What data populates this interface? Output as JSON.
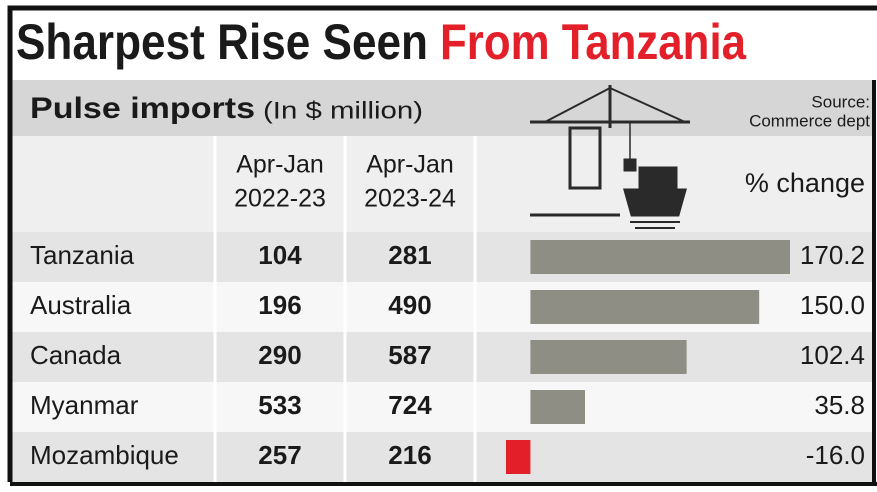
{
  "chart_data": {
    "type": "bar",
    "title": "Sharpest Rise Seen",
    "title_highlight": "From Tanzania",
    "subtitle": "Pulse imports",
    "unit_note": "(In $ million)",
    "source": [
      "Source:",
      "Commerce dept"
    ],
    "columns": [
      {
        "header": [
          "Apr-Jan",
          "2022-23"
        ],
        "values": [
          104,
          196,
          290,
          533,
          257
        ]
      },
      {
        "header": [
          "Apr-Jan",
          "2023-24"
        ],
        "values": [
          281,
          490,
          587,
          724,
          216
        ]
      }
    ],
    "value_header": "% change",
    "categories": [
      "Tanzania",
      "Australia",
      "Canada",
      "Myanmar",
      "Mozambique"
    ],
    "values": [
      170.2,
      150.0,
      102.4,
      35.8,
      -16.0
    ],
    "value_labels": [
      "170.2",
      "150.0",
      "102.4",
      "35.8",
      "-16.0"
    ],
    "color": "#8e8e84",
    "negative_color": "#e3202a",
    "xlim": [
      -16.0,
      170.2
    ]
  }
}
